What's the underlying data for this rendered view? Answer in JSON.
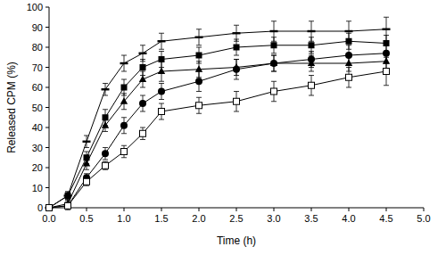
{
  "chart_data": {
    "type": "line",
    "x_label": "Time (h)",
    "y_label": "Released CPM (%)",
    "x": [
      0,
      0.25,
      0.5,
      0.75,
      1.0,
      1.25,
      1.5,
      2.0,
      2.5,
      3.0,
      3.5,
      4.0,
      4.5
    ],
    "xlim": [
      0,
      5
    ],
    "xticks": [
      {
        "value": 0,
        "label": "0.0"
      },
      0.5,
      {
        "value": 1,
        "label": "1.0"
      },
      1.5,
      {
        "value": 2,
        "label": "2.0"
      },
      2.5,
      {
        "value": 3,
        "label": "3.0"
      },
      3.5,
      {
        "value": 4,
        "label": "4.0"
      },
      4.5,
      {
        "value": 5,
        "label": "5.0"
      }
    ],
    "ylim": [
      0,
      100
    ],
    "yticks": [
      0,
      10,
      20,
      30,
      40,
      50,
      60,
      70,
      80,
      90,
      100
    ],
    "grid": false,
    "series": [
      {
        "color": "#000000",
        "marker": "dash",
        "values": [
          0,
          6,
          33,
          59,
          72,
          77,
          83,
          85,
          87,
          88,
          88,
          88,
          89
        ],
        "errors": [
          1,
          2,
          3,
          3,
          4,
          4,
          4,
          4,
          4,
          5,
          5,
          5,
          6
        ]
      },
      {
        "color": "#000000",
        "marker": "square",
        "values": [
          0,
          6,
          25,
          45,
          60,
          70,
          74,
          76,
          80,
          81,
          81,
          83,
          82
        ],
        "errors": [
          1,
          2,
          3,
          4,
          4,
          4,
          4,
          4,
          4,
          4,
          4,
          4,
          4
        ]
      },
      {
        "color": "#000000",
        "marker": "triangle",
        "values": [
          0,
          2,
          22,
          41,
          53,
          64,
          68,
          69,
          70,
          72,
          72,
          72,
          73
        ],
        "errors": [
          1,
          2,
          3,
          3,
          4,
          4,
          5,
          4,
          4,
          4,
          4,
          4,
          4
        ]
      },
      {
        "color": "#000000",
        "marker": "circle",
        "values": [
          0,
          1,
          15,
          27,
          41,
          52,
          58,
          63,
          69,
          72,
          74,
          76,
          77
        ],
        "errors": [
          1,
          2,
          2,
          3,
          4,
          4,
          4,
          5,
          5,
          4,
          4,
          5,
          5
        ]
      },
      {
        "color": "#000000",
        "marker": "open-square",
        "values": [
          0,
          1,
          13,
          21,
          28,
          37,
          48,
          51,
          53,
          58,
          61,
          65,
          68
        ],
        "errors": [
          1,
          1,
          2,
          2,
          3,
          3,
          4,
          4,
          5,
          5,
          5,
          5,
          7
        ]
      }
    ]
  }
}
